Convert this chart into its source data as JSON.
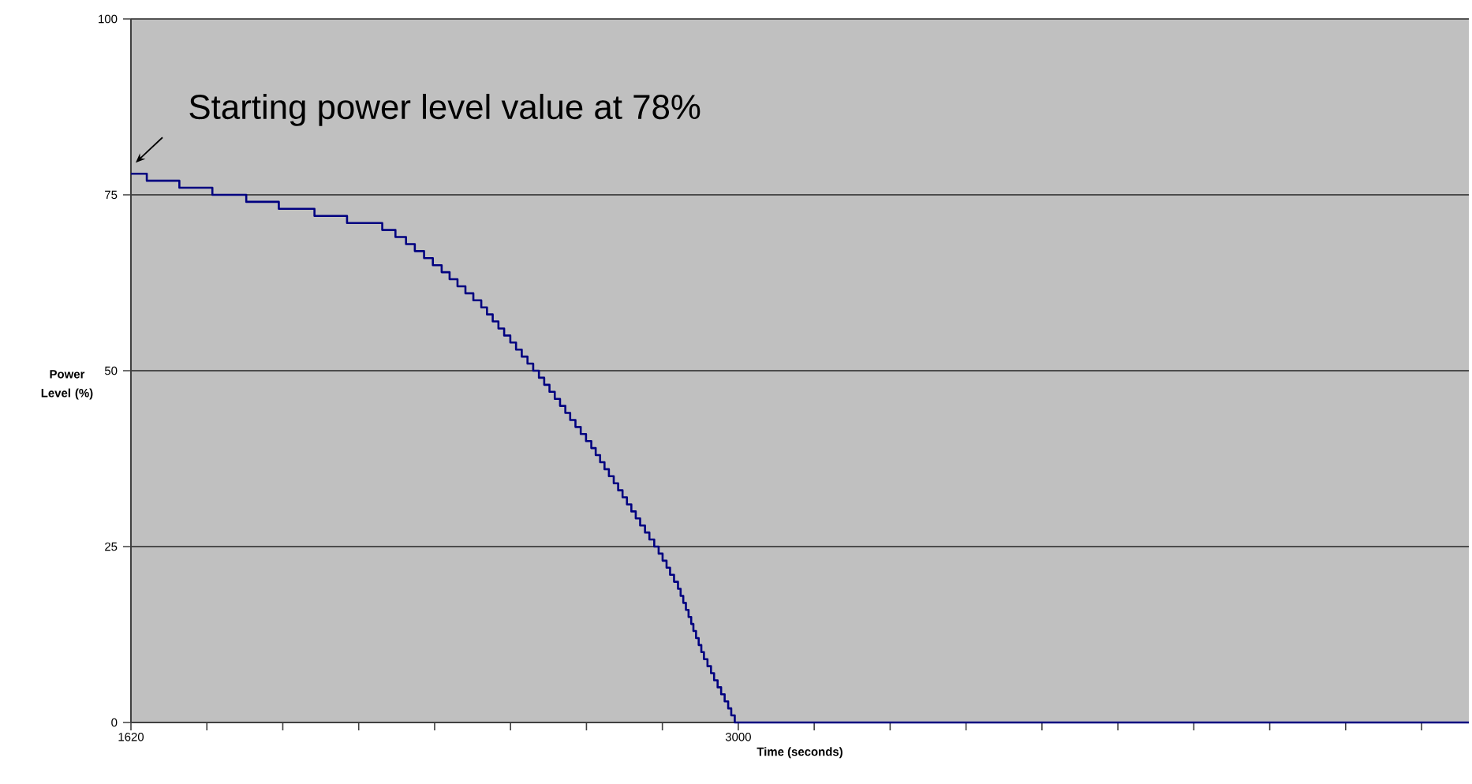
{
  "chart_data": {
    "type": "step",
    "xlabel": "Time (seconds)",
    "ylabel": "Power Level (%)",
    "annotations": [
      {
        "text": "Starting power level value at 78%",
        "x": 1620,
        "y": 78
      }
    ],
    "x": [
      1620,
      1656,
      1730,
      1805,
      1882,
      1956,
      2037,
      2111,
      2191,
      2221,
      2245,
      2265,
      2286,
      2306,
      2326,
      2344,
      2362,
      2380,
      2398,
      2416,
      2429,
      2442,
      2455,
      2468,
      2482,
      2495,
      2508,
      2521,
      2534,
      2547,
      2559,
      2571,
      2583,
      2595,
      2607,
      2618,
      2630,
      2642,
      2654,
      2666,
      2676,
      2686,
      2696,
      2706,
      2717,
      2727,
      2737,
      2747,
      2757,
      2767,
      2777,
      2788,
      2798,
      2809,
      2819,
      2828,
      2837,
      2845,
      2854,
      2863,
      2869,
      2875,
      2881,
      2887,
      2893,
      2898,
      2904,
      2910,
      2916,
      2922,
      2930,
      2938,
      2945,
      2953,
      2961,
      2969,
      2977,
      2984,
      2992,
      3000,
      4660
    ],
    "values": [
      78,
      77,
      76,
      75,
      74,
      73,
      72,
      71,
      70,
      69,
      68,
      67,
      66,
      65,
      64,
      63,
      62,
      61,
      60,
      59,
      58,
      57,
      56,
      55,
      54,
      53,
      52,
      51,
      50,
      49,
      48,
      47,
      46,
      45,
      44,
      43,
      42,
      41,
      40,
      39,
      38,
      37,
      36,
      35,
      34,
      33,
      32,
      31,
      30,
      29,
      28,
      27,
      26,
      25,
      24,
      23,
      22,
      21,
      20,
      19,
      18,
      17,
      16,
      15,
      14,
      13,
      12,
      11,
      10,
      9,
      8,
      7,
      6,
      5,
      4,
      3,
      2,
      1,
      0,
      0,
      0
    ],
    "color": "#000080",
    "xlim": [
      1620,
      4660
    ],
    "ylim": [
      0,
      100
    ],
    "xticks": [
      1620,
      {
        "value": 1792.5,
        "label": null
      },
      {
        "value": 1965,
        "label": null
      },
      {
        "value": 2137.5,
        "label": null
      },
      {
        "value": 2310,
        "label": null
      },
      {
        "value": 2482.5,
        "label": null
      },
      {
        "value": 2655,
        "label": null
      },
      {
        "value": 2827.5,
        "label": null
      },
      3000,
      {
        "value": 3172.5,
        "label": null
      },
      {
        "value": 3345,
        "label": null
      },
      {
        "value": 3517.5,
        "label": null
      },
      {
        "value": 3690,
        "label": null
      },
      {
        "value": 3862.5,
        "label": null
      },
      {
        "value": 4035,
        "label": null
      },
      {
        "value": 4207.5,
        "label": null
      },
      {
        "value": 4380,
        "label": null
      },
      {
        "value": 4552.5,
        "label": null
      }
    ],
    "yticks": [
      0,
      25,
      50,
      75,
      100
    ],
    "grid": "y"
  }
}
